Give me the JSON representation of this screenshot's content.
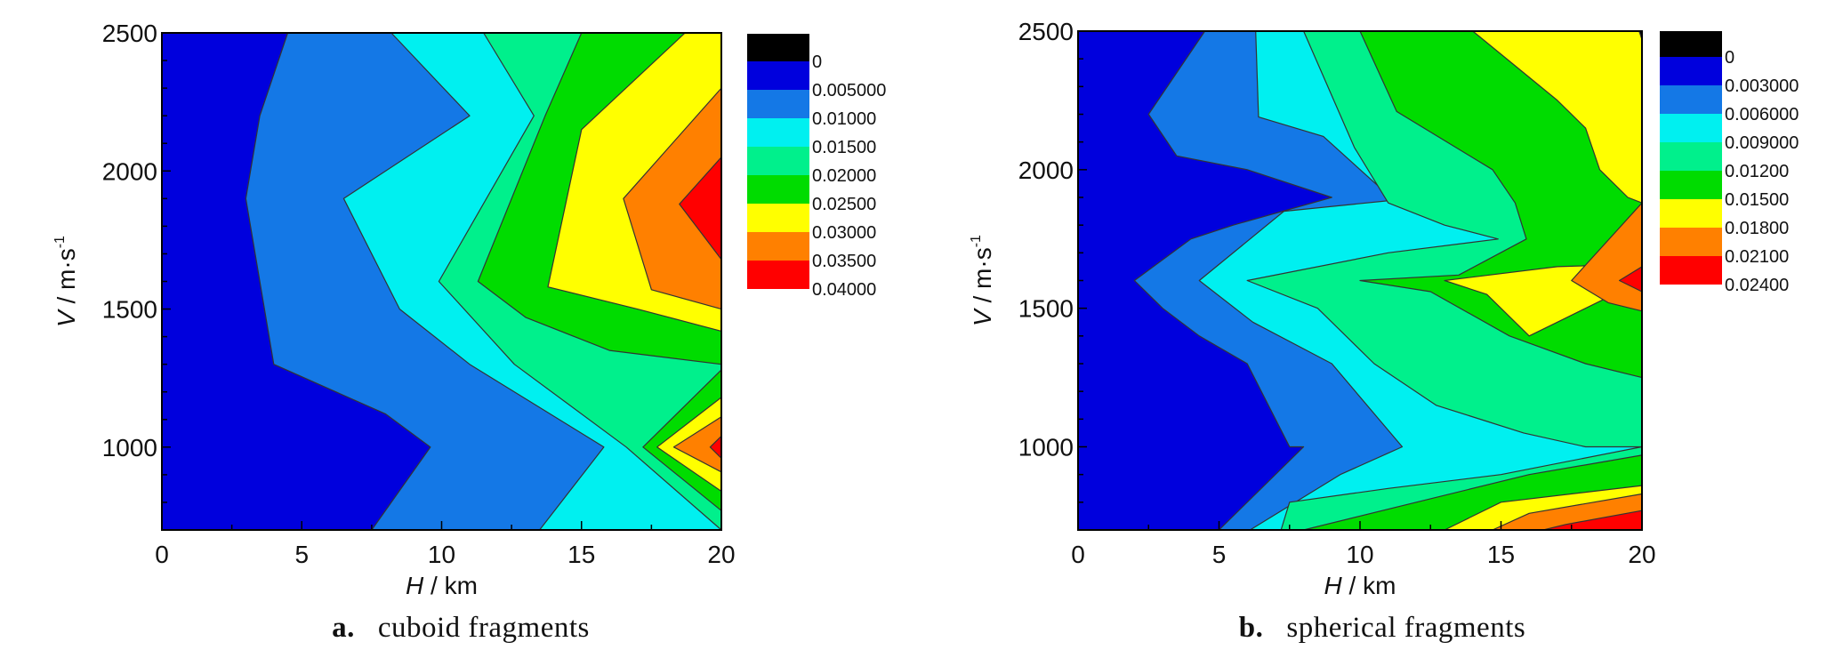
{
  "chart_data": [
    {
      "type": "contour",
      "caption_letter": "a.",
      "caption_text": "cuboid fragments",
      "xlabel_var": "H",
      "xlabel_unit": " / km",
      "ylabel_var": "V",
      "ylabel_unit": " / m·s",
      "ylabel_sup": "-1",
      "xlim": [
        0,
        20
      ],
      "ylim": [
        700,
        2500
      ],
      "xticks": [
        0,
        5,
        10,
        15,
        20
      ],
      "xtick_labels": [
        "0",
        "5",
        "10",
        "15",
        "20"
      ],
      "yticks": [
        1000,
        1500,
        2000,
        2500
      ],
      "ytick_labels": [
        "1000",
        "1500",
        "2000",
        "2500"
      ],
      "legend": {
        "top_color": "#000000",
        "entries": [
          {
            "label": "0",
            "color": "#0000dd"
          },
          {
            "label": "0.005000",
            "color": "#1478e6"
          },
          {
            "label": "0.01000",
            "color": "#00f0f0"
          },
          {
            "label": "0.01500",
            "color": "#00f08c"
          },
          {
            "label": "0.02000",
            "color": "#00dc00"
          },
          {
            "label": "0.02500",
            "color": "#ffff00"
          },
          {
            "label": "0.03000",
            "color": "#ff8000"
          },
          {
            "label": "0.03500",
            "color": "#ff0000"
          },
          {
            "label": "0.04000",
            "color": null
          }
        ]
      },
      "levels": [
        0.005,
        0.01,
        0.015,
        0.02,
        0.025,
        0.03,
        0.035
      ],
      "regions": [
        {
          "level": 0.005,
          "color": "#1478e6",
          "points": [
            [
              4.5,
              2500
            ],
            [
              3.5,
              2200
            ],
            [
              3,
              1900
            ],
            [
              4,
              1300
            ],
            [
              8,
              1120
            ],
            [
              9.6,
              1000
            ],
            [
              7.5,
              700
            ],
            [
              20,
              700
            ],
            [
              20,
              2500
            ]
          ]
        },
        {
          "level": 0.01,
          "color": "#00f0f0",
          "points": [
            [
              8.2,
              2500
            ],
            [
              11,
              2200
            ],
            [
              6.5,
              1900
            ],
            [
              8.5,
              1500
            ],
            [
              11,
              1300
            ],
            [
              15.8,
              1000
            ],
            [
              13.5,
              700
            ],
            [
              20,
              700
            ],
            [
              20,
              2500
            ]
          ]
        },
        {
          "level": 0.015,
          "color": "#00f08c",
          "points": [
            [
              11.5,
              2500
            ],
            [
              13.3,
              2200
            ],
            [
              9.9,
              1600
            ],
            [
              12.6,
              1300
            ],
            [
              16.6,
              1000
            ],
            [
              20,
              700
            ],
            [
              20,
              2500
            ]
          ]
        },
        {
          "level": 0.02,
          "color": "#00dc00",
          "points": [
            [
              15,
              2500
            ],
            [
              13.7,
              2200
            ],
            [
              11.3,
              1600
            ],
            [
              13,
              1470
            ],
            [
              16,
              1350
            ],
            [
              20,
              1300
            ],
            [
              20,
              2500
            ]
          ]
        },
        {
          "level": 0.02,
          "color": "#00dc00",
          "points": [
            [
              20,
              1280
            ],
            [
              17.2,
              1000
            ],
            [
              20,
              770
            ]
          ]
        },
        {
          "level": 0.025,
          "color": "#ffff00",
          "points": [
            [
              18.7,
              2500
            ],
            [
              15,
              2150
            ],
            [
              13.8,
              1580
            ],
            [
              17,
              1500
            ],
            [
              20,
              1420
            ],
            [
              20,
              2500
            ]
          ]
        },
        {
          "level": 0.025,
          "color": "#ffff00",
          "points": [
            [
              20,
              1180
            ],
            [
              17.7,
              1000
            ],
            [
              20,
              840
            ]
          ]
        },
        {
          "level": 0.03,
          "color": "#ff8000",
          "points": [
            [
              20,
              2300
            ],
            [
              16.5,
              1900
            ],
            [
              17.5,
              1570
            ],
            [
              20,
              1500
            ]
          ]
        },
        {
          "level": 0.03,
          "color": "#ff8000",
          "points": [
            [
              20,
              1110
            ],
            [
              18.3,
              1000
            ],
            [
              20,
              910
            ]
          ]
        },
        {
          "level": 0.035,
          "color": "#ff0000",
          "points": [
            [
              20,
              2050
            ],
            [
              18.5,
              1880
            ],
            [
              20,
              1680
            ]
          ]
        },
        {
          "level": 0.035,
          "color": "#ff0000",
          "points": [
            [
              20,
              1040
            ],
            [
              19.6,
              1000
            ],
            [
              20,
              960
            ]
          ]
        }
      ]
    },
    {
      "type": "contour",
      "caption_letter": "b.",
      "caption_text": "spherical fragments",
      "xlabel_var": "H",
      "xlabel_unit": " / km",
      "ylabel_var": "V",
      "ylabel_unit": " / m·s",
      "ylabel_sup": "-1",
      "xlim": [
        0,
        20
      ],
      "ylim": [
        700,
        2500
      ],
      "xticks": [
        0,
        5,
        10,
        15,
        20
      ],
      "xtick_labels": [
        "0",
        "5",
        "10",
        "15",
        "20"
      ],
      "yticks": [
        1000,
        1500,
        2000,
        2500
      ],
      "ytick_labels": [
        "1000",
        "1500",
        "2000",
        "2500"
      ],
      "legend": {
        "top_color": "#000000",
        "entries": [
          {
            "label": "0",
            "color": "#0000dd"
          },
          {
            "label": "0.003000",
            "color": "#1478e6"
          },
          {
            "label": "0.006000",
            "color": "#00f0f0"
          },
          {
            "label": "0.009000",
            "color": "#00f08c"
          },
          {
            "label": "0.01200",
            "color": "#00dc00"
          },
          {
            "label": "0.01500",
            "color": "#ffff00"
          },
          {
            "label": "0.01800",
            "color": "#ff8000"
          },
          {
            "label": "0.02100",
            "color": "#ff0000"
          },
          {
            "label": "0.02400",
            "color": null
          }
        ]
      },
      "levels": [
        0.003,
        0.006,
        0.009,
        0.012,
        0.015,
        0.018,
        0.021
      ],
      "regions": [
        {
          "level": 0.003,
          "color": "#1478e6",
          "points": [
            [
              4.5,
              2500
            ],
            [
              2.5,
              2200
            ],
            [
              3.5,
              2050
            ],
            [
              6,
              2000
            ],
            [
              9,
              1900
            ],
            [
              5.5,
              1800
            ],
            [
              4,
              1750
            ],
            [
              2,
              1600
            ],
            [
              3,
              1500
            ],
            [
              4.3,
              1400
            ],
            [
              6,
              1300
            ],
            [
              7.5,
              1000
            ],
            [
              8,
              1000
            ],
            [
              5,
              700
            ],
            [
              20,
              700
            ],
            [
              20,
              2500
            ]
          ]
        },
        {
          "level": 0.006,
          "color": "#00f0f0",
          "points": [
            [
              6.3,
              2500
            ],
            [
              6.4,
              2190
            ],
            [
              8.7,
              2120
            ],
            [
              11.2,
              1890
            ],
            [
              7.3,
              1850
            ],
            [
              4.3,
              1600
            ],
            [
              6.2,
              1450
            ],
            [
              9,
              1300
            ],
            [
              11.5,
              1000
            ],
            [
              9.3,
              900
            ],
            [
              6.1,
              700
            ],
            [
              20,
              700
            ],
            [
              20,
              2500
            ]
          ]
        },
        {
          "level": 0.009,
          "color": "#00f08c",
          "points": [
            [
              8,
              2500
            ],
            [
              9.8,
              2080
            ],
            [
              11,
              1880
            ],
            [
              13,
              1800
            ],
            [
              14.9,
              1750
            ],
            [
              11,
              1700
            ],
            [
              6,
              1600
            ],
            [
              8.5,
              1500
            ],
            [
              10.5,
              1300
            ],
            [
              12.7,
              1150
            ],
            [
              15.8,
              1050
            ],
            [
              18,
              1000
            ],
            [
              20,
              1000
            ],
            [
              15,
              900
            ],
            [
              11,
              850
            ],
            [
              7.5,
              800
            ],
            [
              7.2,
              700
            ],
            [
              20,
              700
            ],
            [
              20,
              2500
            ]
          ]
        },
        {
          "level": 0.012,
          "color": "#00dc00",
          "points": [
            [
              10,
              2500
            ],
            [
              11.3,
              2210
            ],
            [
              14.7,
              2000
            ],
            [
              15.5,
              1880
            ],
            [
              15.9,
              1750
            ],
            [
              13.5,
              1620
            ],
            [
              10,
              1600
            ],
            [
              12.5,
              1560
            ],
            [
              15.3,
              1400
            ],
            [
              18,
              1300
            ],
            [
              20,
              1250
            ],
            [
              20,
              970
            ],
            [
              16,
              900
            ],
            [
              12,
              800
            ],
            [
              8,
              700
            ],
            [
              20,
              700
            ],
            [
              20,
              2500
            ]
          ]
        },
        {
          "level": 0.015,
          "color": "#ffff00",
          "points": [
            [
              14,
              2500
            ],
            [
              17,
              2250
            ],
            [
              18,
              2150
            ],
            [
              18.5,
              2000
            ],
            [
              19.5,
              1900
            ],
            [
              20,
              1880
            ],
            [
              20,
              1600
            ],
            [
              18,
              1500
            ],
            [
              17,
              1450
            ],
            [
              16,
              1400
            ],
            [
              14.5,
              1550
            ],
            [
              13,
              1600
            ],
            [
              17,
              1650
            ],
            [
              20,
              1660
            ],
            [
              20,
              2500
            ]
          ]
        },
        {
          "level": 0.015,
          "color": "#ffff00",
          "points": [
            [
              20,
              860
            ],
            [
              15,
              800
            ],
            [
              13,
              700
            ],
            [
              20,
              700
            ]
          ]
        },
        {
          "level": 0.018,
          "color": "#ff8000",
          "points": [
            [
              20,
              1880
            ],
            [
              17.5,
              1600
            ],
            [
              18.8,
              1520
            ],
            [
              20,
              1490
            ]
          ]
        },
        {
          "level": 0.018,
          "color": "#ff8000",
          "points": [
            [
              20,
              830
            ],
            [
              16,
              760
            ],
            [
              14.7,
              700
            ],
            [
              20,
              700
            ]
          ]
        },
        {
          "level": 0.021,
          "color": "#ff0000",
          "points": [
            [
              20,
              1650
            ],
            [
              19.2,
              1600
            ],
            [
              20,
              1560
            ]
          ]
        },
        {
          "level": 0.021,
          "color": "#ff0000",
          "points": [
            [
              20,
              770
            ],
            [
              17.3,
              720
            ],
            [
              16.5,
              700
            ],
            [
              20,
              700
            ]
          ]
        },
        {
          "level": 0.024,
          "color": "#000000",
          "points": [
            [
              19.9,
              2500
            ],
            [
              20,
              2470
            ],
            [
              20,
              2500
            ]
          ]
        }
      ]
    }
  ]
}
